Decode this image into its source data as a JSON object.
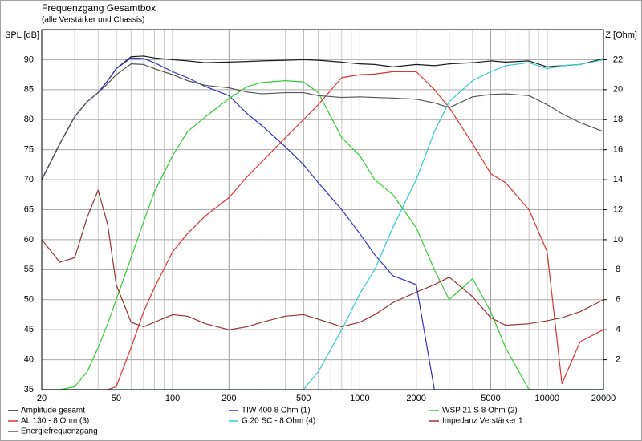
{
  "chart_data": {
    "type": "line",
    "title": "Frequenzgang Gesamtbox",
    "subtitle": "(alle Verstärker und Chassis)",
    "y_label": "SPL [dB]",
    "y2_label": "Z [Ohm]",
    "log_x": true,
    "grid": true,
    "minor_grid": true,
    "legend": "bottom",
    "xlim": [
      20,
      20000
    ],
    "xticks": [
      20,
      50,
      100,
      200,
      500,
      1000,
      2000,
      5000,
      10000,
      20000
    ],
    "ylim": [
      35,
      95
    ],
    "yticks": [
      35,
      40,
      45,
      50,
      55,
      60,
      65,
      70,
      75,
      80,
      85,
      90
    ],
    "y2lim": [
      0,
      24
    ],
    "y2ticks": [
      2,
      4,
      6,
      8,
      10,
      12,
      14,
      16,
      18,
      20,
      22
    ],
    "x": [
      20,
      25,
      30,
      35,
      40,
      45,
      50,
      60,
      70,
      80,
      100,
      120,
      150,
      200,
      250,
      300,
      400,
      500,
      600,
      800,
      1000,
      1200,
      1500,
      2000,
      2500,
      3000,
      4000,
      5000,
      6000,
      8000,
      10000,
      12000,
      15000,
      20000
    ],
    "series": [
      {
        "name": "Amplitude gesamt",
        "color": "#1a1a1a",
        "values": [
          70,
          76,
          80.5,
          83,
          84.5,
          86.5,
          88.5,
          90.5,
          90.6,
          90.3,
          90,
          89.8,
          89.5,
          89.6,
          89.7,
          89.8,
          89.9,
          90,
          89.9,
          89.6,
          89.3,
          89.2,
          88.8,
          89.2,
          89,
          89.3,
          89.5,
          89.8,
          89.6,
          89.8,
          88.8,
          89,
          89.2,
          90.2
        ]
      },
      {
        "name": "TIW 400 8 Ohm (1)",
        "color": "#3333cc",
        "values": [
          70,
          76,
          80.5,
          83,
          84.5,
          86.5,
          88.5,
          90.3,
          90.2,
          89.5,
          88,
          87,
          85.5,
          84,
          81,
          79,
          75.5,
          72.5,
          69.5,
          65,
          61,
          57.5,
          54,
          52.5,
          35,
          35,
          35,
          35,
          35,
          35,
          35,
          35,
          35,
          35
        ]
      },
      {
        "name": "WSP 21 S 8 Ohm (2)",
        "color": "#33cc33",
        "values": [
          35,
          35,
          35.5,
          38,
          42,
          46,
          50,
          57,
          63,
          68,
          74,
          78,
          80.5,
          83.5,
          85.5,
          86.2,
          86.5,
          86.3,
          84.5,
          77,
          74,
          70,
          67.5,
          62,
          55,
          50,
          53.5,
          48,
          42,
          35,
          35,
          35,
          35,
          35
        ]
      },
      {
        "name": "AL 130 - 8 Ohm (3)",
        "color": "#dd3333",
        "values": [
          35,
          35,
          35,
          35,
          35,
          35,
          35.5,
          42,
          48,
          52,
          58,
          61,
          64,
          67,
          70.5,
          73,
          77,
          80,
          82.5,
          87,
          87.5,
          87.6,
          88,
          88,
          85,
          82,
          76,
          71,
          69.5,
          65,
          58,
          36,
          43,
          45
        ]
      },
      {
        "name": "G 20 SC - 8 Ohm (4)",
        "color": "#33cccc",
        "values": [
          35,
          35,
          35,
          35,
          35,
          35,
          35,
          35,
          35,
          35,
          35,
          35,
          35,
          35,
          35,
          35,
          35,
          35,
          38,
          45,
          51,
          55,
          62,
          70,
          78,
          83,
          86.5,
          88,
          89,
          89.5,
          88.5,
          89,
          89.2,
          90
        ]
      },
      {
        "name": "Impedanz Verstärker 1",
        "color": "#993333",
        "axis": "y2",
        "values": [
          10,
          8.5,
          8.8,
          11.5,
          13.3,
          11,
          7,
          4.5,
          4.2,
          4.5,
          5,
          4.9,
          4.4,
          4,
          4.2,
          4.5,
          4.9,
          5,
          4.7,
          4.2,
          4.5,
          5,
          5.8,
          6.5,
          7,
          7.5,
          6.2,
          4.8,
          4.3,
          4.4,
          4.6,
          4.8,
          5.2,
          6
        ]
      },
      {
        "name": "Energiefrequenzgang",
        "color": "#555555",
        "values": [
          70,
          76,
          80.5,
          83,
          84.5,
          86,
          87.5,
          89.3,
          89.2,
          88.5,
          87.5,
          86.5,
          85.7,
          85.3,
          84.6,
          84.3,
          84.5,
          84.5,
          84,
          83.7,
          83.8,
          83.7,
          83.6,
          83.4,
          82.8,
          82,
          83.8,
          84.2,
          84.3,
          84,
          82.5,
          81,
          79.5,
          78
        ]
      }
    ]
  }
}
